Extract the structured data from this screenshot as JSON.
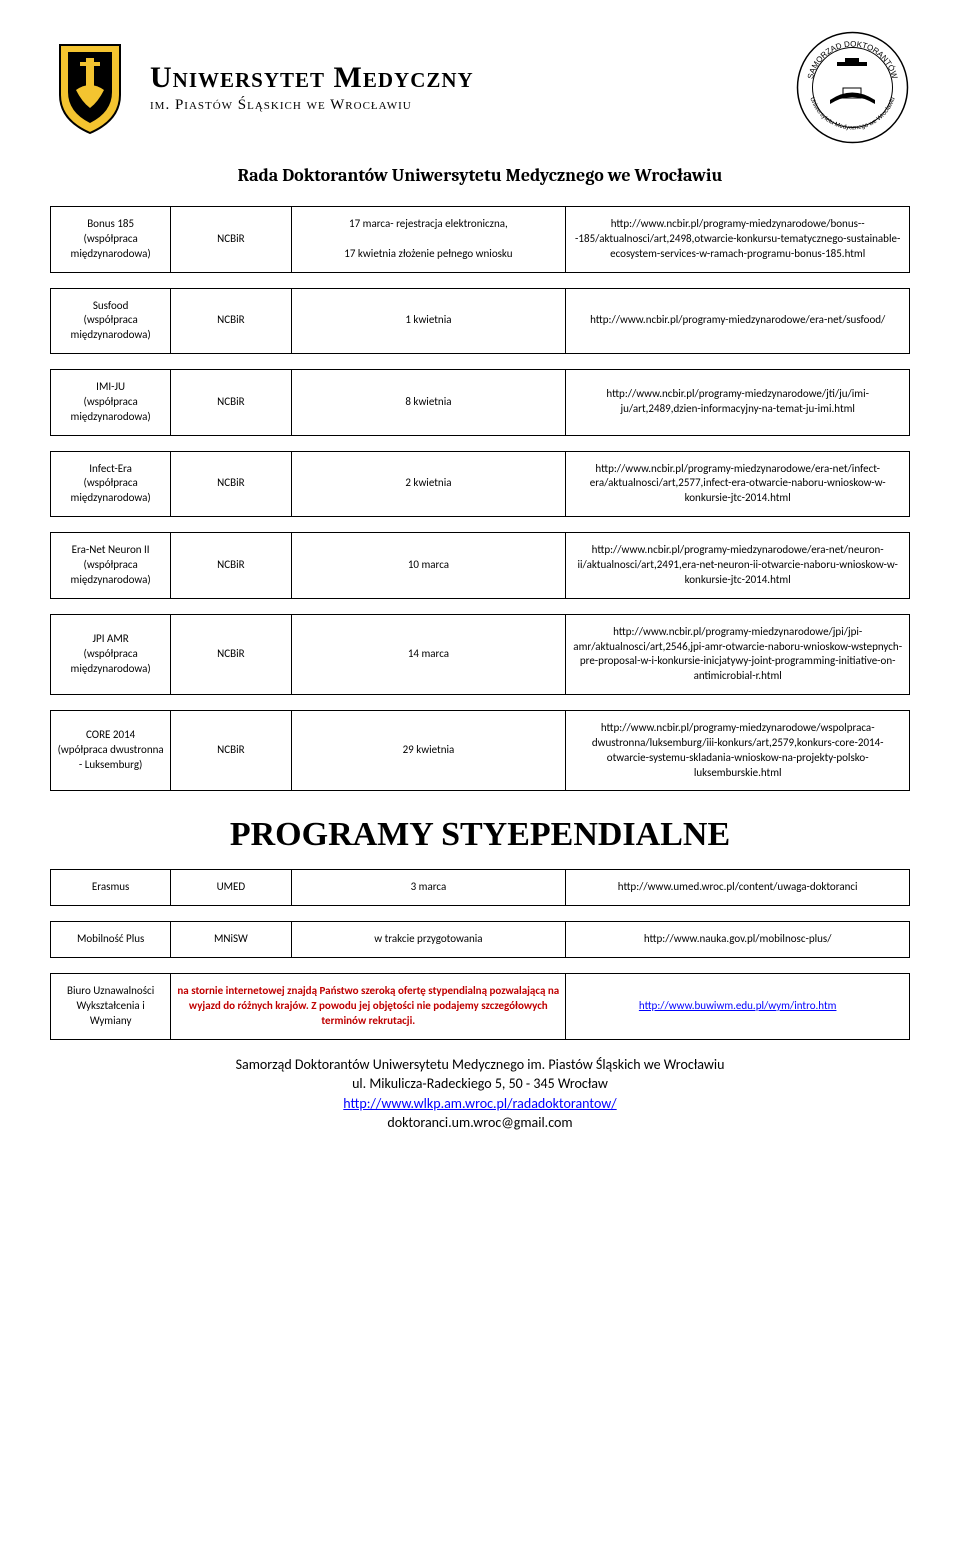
{
  "header": {
    "uni_main": "Uniwersytet Medyczny",
    "uni_sub": "im. Piastów Śląskich we Wrocławiu",
    "stamp_top": "SAMORZĄD DOKTORANTÓW",
    "stamp_bottom": "Uniwersytetu Medycznego we Wrocławiu"
  },
  "doc_title": "Rada Doktorantów Uniwersytetu Medycznego we Wrocławiu",
  "rows1": [
    {
      "name": "Bonus 185\n(współpraca międzynarodowa)",
      "inst": "NCBiR",
      "deadline": "17 marca- rejestracja elektroniczna,\n\n17 kwietnia złożenie pełnego wniosku",
      "url": "http://www.ncbir.pl/programy-miedzynarodowe/bonus---185/aktualnosci/art,2498,otwarcie-konkursu-tematycznego-sustainable-ecosystem-services-w-ramach-programu-bonus-185.html"
    },
    {
      "name": "Susfood\n(współpraca międzynarodowa)",
      "inst": "NCBiR",
      "deadline": "1 kwietnia",
      "url": "http://www.ncbir.pl/programy-miedzynarodowe/era-net/susfood/"
    },
    {
      "name": "IMI-JU\n(współpraca międzynarodowa)",
      "inst": "NCBiR",
      "deadline": "8 kwietnia",
      "url": "http://www.ncbir.pl/programy-miedzynarodowe/jti/ju/imi-ju/art,2489,dzien-informacyjny-na-temat-ju-imi.html"
    },
    {
      "name": "Infect-Era\n(współpraca międzynarodowa)",
      "inst": "NCBiR",
      "deadline": "2 kwietnia",
      "url": "http://www.ncbir.pl/programy-miedzynarodowe/era-net/infect-era/aktualnosci/art,2577,infect-era-otwarcie-naboru-wnioskow-w-konkursie-jtc-2014.html"
    },
    {
      "name": "Era-Net Neuron II\n(współpraca międzynarodowa)",
      "inst": "NCBiR",
      "deadline": "10 marca",
      "url": "http://www.ncbir.pl/programy-miedzynarodowe/era-net/neuron-ii/aktualnosci/art,2491,era-net-neuron-ii-otwarcie-naboru-wnioskow-w-konkursie-jtc-2014.html"
    },
    {
      "name": "JPI AMR\n(współpraca międzynarodowa)",
      "inst": "NCBiR",
      "deadline": "14 marca",
      "url": "http://www.ncbir.pl/programy-miedzynarodowe/jpi/jpi-amr/aktualnosci/art,2546,jpi-amr-otwarcie-naboru-wnioskow-wstepnych-pre-proposal-w-i-konkursie-inicjatywy-joint-programming-initiative-on-antimicrobial-r.html"
    },
    {
      "name": "CORE 2014\n(wpółpraca dwustronna - Luksemburg)",
      "inst": "NCBiR",
      "deadline": "29 kwietnia",
      "url": "http://www.ncbir.pl/programy-miedzynarodowe/wspolpraca-dwustronna/luksemburg/iii-konkurs/art,2579,konkurs-core-2014-otwarcie-systemu-skladania-wnioskow-na-projekty-polsko-luksemburskie.html"
    }
  ],
  "section2_title": "PROGRAMY STYEPENDIALNE",
  "rows2": [
    {
      "name": "Erasmus",
      "inst": "UMED",
      "deadline": "3 marca",
      "url": "http://www.umed.wroc.pl/content/uwaga-doktoranci"
    },
    {
      "name": "Mobilność Plus",
      "inst": "MNiSW",
      "deadline": "w trakcie przygotowania",
      "url": "http://www.nauka.gov.pl/mobilnosc-plus/"
    },
    {
      "name": "Biuro Uznawalności Wykształcenia i Wymiany",
      "inst": "",
      "deadline_red": "na stornie internetowej znajdą Państwo szeroką ofertę stypendialną pozwalającą na wyjazd do różnych krajów. Z powodu jej objętości nie podajemy szczegółowych terminów rekrutacji.",
      "url_link": "http://www.buwiwm.edu.pl/wym/intro.htm"
    }
  ],
  "footer": {
    "line1": "Samorząd Doktorantów Uniwersytetu Medycznego im. Piastów Śląskich we Wrocławiu",
    "line2": "ul. Mikulicza-Radeckiego 5, 50 - 345  Wrocław",
    "link": "http://www.wlkp.am.wroc.pl/radadoktorantow/",
    "email": "doktoranci.um.wroc@gmail.com"
  }
}
